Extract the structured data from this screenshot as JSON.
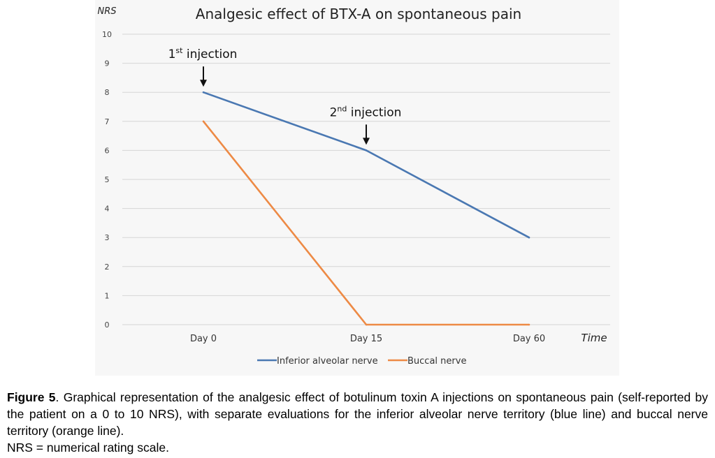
{
  "chart_data": {
    "type": "line",
    "title": "Analgesic effect of BTX-A on spontaneous pain",
    "ylabel": "NRS",
    "xlabel": "Time",
    "categories": [
      "Day 0",
      "Day 15",
      "Day 60"
    ],
    "yticks": [
      "0",
      "1",
      "2",
      "3",
      "4",
      "5",
      "6",
      "7",
      "8",
      "9",
      "10"
    ],
    "ylim": [
      0,
      10
    ],
    "grid": true,
    "legend_position": "bottom",
    "series": [
      {
        "name": "Inferior alveolar nerve",
        "values": [
          8,
          6,
          3
        ],
        "color": "#4a78b2"
      },
      {
        "name": "Buccal nerve",
        "values": [
          7,
          0,
          0
        ],
        "color": "#ed8a45"
      }
    ],
    "annotations": [
      {
        "base": "1",
        "sup": "st",
        "label": "injection",
        "at_category": "Day 0",
        "at_value": 8
      },
      {
        "base": "2",
        "sup": "nd",
        "label": "injection",
        "at_category": "Day 15",
        "at_value": 6
      }
    ]
  },
  "caption": {
    "label": "Figure 5",
    "text": ". Graphical representation of the analgesic effect of botulinum toxin A injections on spontaneous pain (self-reported by the patient on a 0 to 10 NRS), with separate evaluations for the inferior alveolar nerve territory (blue line) and buccal nerve territory (orange line).",
    "abbreviation": "NRS = numerical rating scale."
  }
}
